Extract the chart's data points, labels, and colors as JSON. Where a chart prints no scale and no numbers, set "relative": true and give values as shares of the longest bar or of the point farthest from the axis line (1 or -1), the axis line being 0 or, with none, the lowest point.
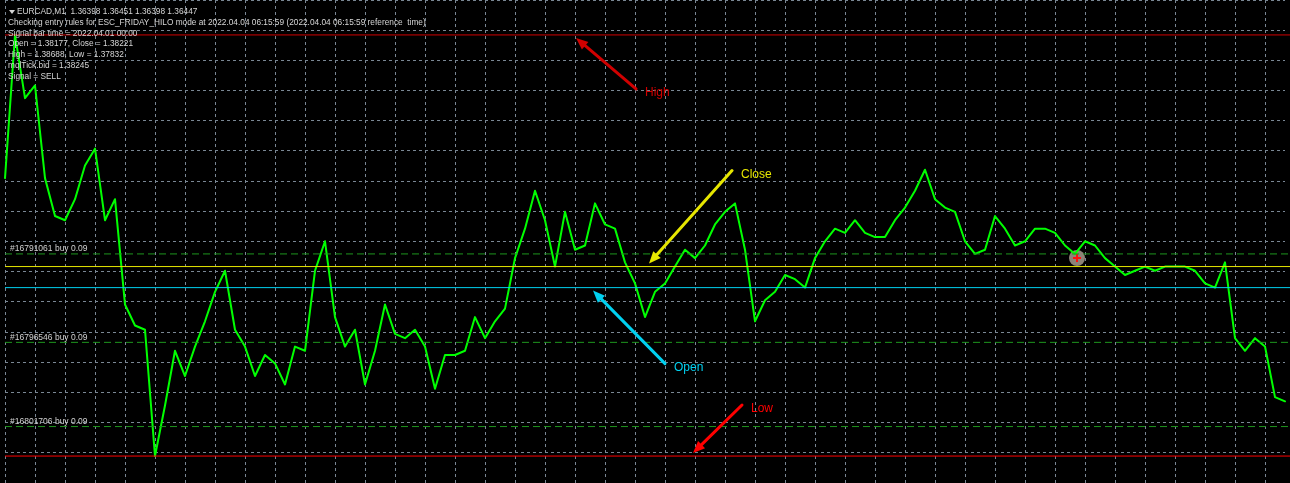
{
  "chart_data": {
    "type": "line",
    "relative": true,
    "grid": true,
    "categories": [
      null,
      null,
      null,
      null,
      null,
      null,
      null,
      null,
      null,
      null,
      null,
      null,
      null,
      null,
      null,
      null,
      null,
      null,
      null,
      null,
      null,
      null,
      null,
      null,
      null,
      null,
      null,
      null,
      null,
      null,
      null,
      null,
      null,
      null,
      null,
      null,
      null,
      null,
      null,
      null,
      null,
      null,
      null,
      null,
      null,
      null,
      null,
      null,
      null,
      null,
      null,
      null,
      null,
      null,
      null,
      null,
      null,
      null,
      null,
      null,
      null,
      null,
      null,
      null,
      null,
      null,
      null,
      null,
      null,
      null,
      null,
      null,
      null,
      null,
      null,
      null,
      null,
      null,
      null,
      null,
      null,
      null,
      null,
      null,
      null,
      null,
      null,
      null,
      null,
      null,
      null,
      null,
      null,
      null,
      null,
      null,
      null,
      null,
      null,
      null,
      null,
      null,
      null,
      null,
      null,
      null,
      null,
      null,
      null,
      null,
      null,
      null,
      null,
      null,
      null,
      null,
      null,
      null,
      null,
      null,
      null,
      null,
      null,
      null,
      null,
      null,
      null,
      null,
      null
    ],
    "series": [
      {
        "color": "#00ff00",
        "values": [
          0.66,
          1,
          0.85,
          0.88,
          0.66,
          0.57,
          0.56,
          0.61,
          0.69,
          0.73,
          0.56,
          0.61,
          0.36,
          0.31,
          0.3,
          0,
          0.12,
          0.25,
          0.19,
          0.26,
          0.32,
          0.39,
          0.44,
          0.3,
          0.26,
          0.19,
          0.24,
          0.22,
          0.17,
          0.26,
          0.25,
          0.44,
          0.51,
          0.33,
          0.26,
          0.3,
          0.17,
          0.25,
          0.36,
          0.29,
          0.28,
          0.3,
          0.26,
          0.16,
          0.24,
          0.24,
          0.25,
          0.33,
          0.28,
          0.32,
          0.35,
          0.47,
          0.54,
          0.63,
          0.56,
          0.45,
          0.58,
          0.49,
          0.5,
          0.6,
          0.55,
          0.54,
          0.46,
          0.41,
          0.33,
          0.39,
          0.41,
          0.45,
          0.49,
          0.47,
          0.5,
          0.55,
          0.58,
          0.6,
          0.49,
          0.32,
          0.37,
          0.39,
          0.43,
          0.42,
          0.4,
          0.47,
          0.51,
          0.54,
          0.53,
          0.56,
          0.53,
          0.52,
          0.52,
          0.56,
          0.59,
          0.63,
          0.68,
          0.61,
          0.59,
          0.58,
          0.51,
          0.48,
          0.49,
          0.57,
          0.54,
          0.5,
          0.51,
          0.54,
          0.54,
          0.53,
          0.5,
          0.48,
          0.51,
          0.5,
          0.47,
          0.45,
          0.43,
          0.44,
          0.45,
          0.44,
          0.45,
          0.45,
          0.45,
          0.44,
          0.41,
          0.4,
          0.46,
          0.28,
          0.25,
          0.28,
          0.26,
          0.14,
          0.13
        ]
      }
    ],
    "ref_lines": [
      {
        "axis": "y",
        "value": 1,
        "label": "High",
        "color": "#d00000"
      },
      {
        "axis": "y",
        "value": 0.45,
        "label": "Close",
        "color": "#e6e600"
      },
      {
        "axis": "y",
        "value": 0.4,
        "label": "Open",
        "color": "#00d0f0"
      },
      {
        "axis": "y",
        "value": 0,
        "label": "Low",
        "color": "#ff0000"
      },
      {
        "axis": "y",
        "value": 0.48,
        "label": "#16791061 buy 0.09",
        "color": "#1e961e",
        "line_style": "dashed"
      },
      {
        "axis": "y",
        "value": 0.27,
        "label": "#16796546 buy 0.09",
        "color": "#1e961e",
        "line_style": "dashed"
      },
      {
        "axis": "y",
        "value": 0.07,
        "label": "#16801706 buy 0.09",
        "color": "#1e961e",
        "line_style": "dashed"
      }
    ],
    "annotations": [
      "EURCAD,M1  1.36398 1.36451 1.36398 1.36447",
      "Checking entry rules for ESC_FRIDAY_HILO mode at 2022.04.04 06:15:59 (2022.04.04 06:15:59 reference  time)",
      "Signal bar time = 2022.04.01 00:00",
      "Open = 1.38177, Close = 1.38221",
      "High = 1.38688, Low = 1.37832",
      "mqlTick.bid = 1.38245",
      "Signal = SELL"
    ]
  }
}
